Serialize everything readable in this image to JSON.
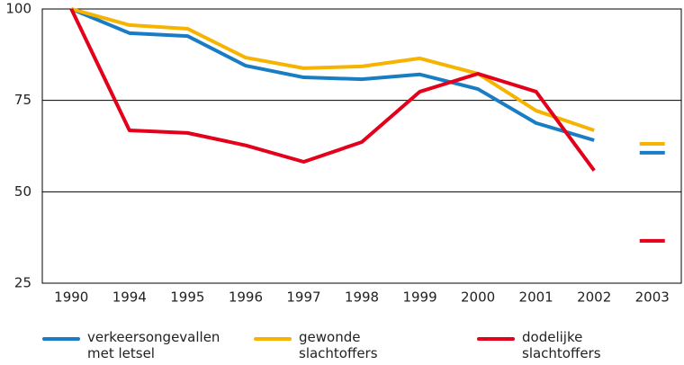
{
  "chart_data": {
    "type": "line",
    "categories": [
      "1990",
      "1994",
      "1995",
      "1996",
      "1997",
      "1998",
      "1999",
      "2000",
      "2001",
      "2002",
      "2003"
    ],
    "series": [
      {
        "name": "verkeersongevallen met letsel",
        "color": "#1a7dc4",
        "values": [
          100,
          93.4,
          92.6,
          84.5,
          81.3,
          80.8,
          82.1,
          78.1,
          68.8,
          64.1,
          60.7
        ]
      },
      {
        "name": "gewonde slachtoffers",
        "color": "#f6b400",
        "values": [
          100,
          95.6,
          94.6,
          86.7,
          83.8,
          84.3,
          86.5,
          82.3,
          72.2,
          66.8,
          63.1
        ]
      },
      {
        "name": "dodelijke slachtoffers",
        "color": "#e3001b",
        "values": [
          100,
          66.8,
          66.1,
          62.7,
          58.2,
          63.6,
          77.4,
          82.3,
          77.4,
          55.8,
          36.6
        ]
      }
    ],
    "ylim": [
      25,
      100
    ],
    "yticks": [
      25,
      50,
      75,
      100
    ],
    "grid": true
  }
}
